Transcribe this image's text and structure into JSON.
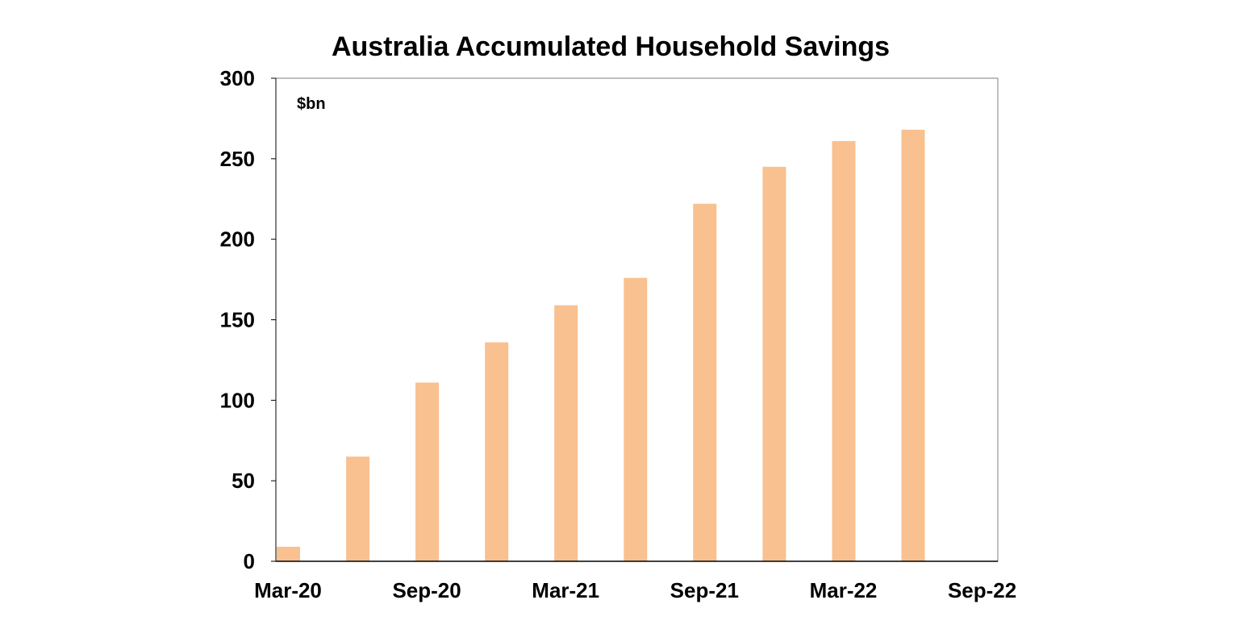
{
  "chart_data": {
    "type": "bar",
    "title": "Australia Accumulated Household Savings",
    "unit_label": "$bn",
    "xlabel": "",
    "ylabel": "",
    "categories": [
      "Mar-20",
      "Jun-20",
      "Sep-20",
      "Dec-20",
      "Mar-21",
      "Jun-21",
      "Sep-21",
      "Dec-21",
      "Mar-22",
      "Jun-22"
    ],
    "values": [
      9,
      65,
      111,
      136,
      159,
      176,
      222,
      245,
      261,
      268
    ],
    "x_tick_labels": [
      "Mar-20",
      "Sep-20",
      "Mar-21",
      "Sep-21",
      "Mar-22",
      "Sep-22"
    ],
    "y_ticks": [
      "0",
      "50",
      "100",
      "150",
      "200",
      "250",
      "300"
    ],
    "ylim": [
      0,
      300
    ],
    "grid": false,
    "legend": "none",
    "colors": {
      "bar": "#F9C090",
      "axis": "#000000",
      "frame": "#7f7f7f"
    }
  }
}
